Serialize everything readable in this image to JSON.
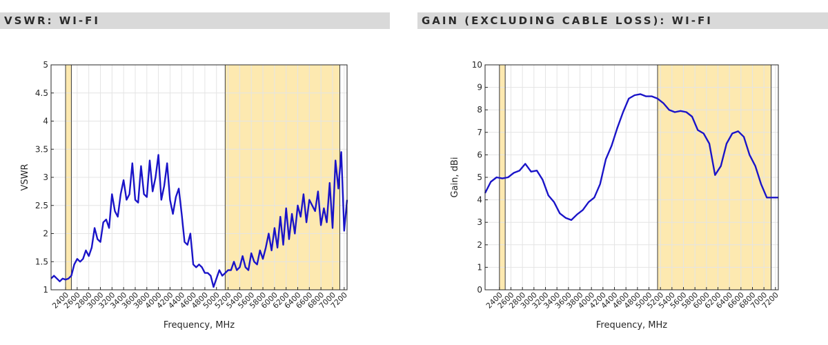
{
  "colors": {
    "header_bg": "#d9d9d9",
    "header_text": "#2b2b2b",
    "band_fill": "#fde9b0",
    "band_edge": "#3a3a3a",
    "line": "#1a14c8",
    "grid": "#e4e4e4",
    "axis": "#262626"
  },
  "panels": [
    {
      "title": "VSWR: WI-FI"
    },
    {
      "title": "GAIN (EXCLUDING CABLE LOSS): WI-FI"
    }
  ],
  "chart_data": [
    {
      "type": "line",
      "title": "",
      "xlabel": "Frequency, MHz",
      "ylabel": "VSWR",
      "xlim": [
        2150,
        7250
      ],
      "ylim": [
        1,
        5
      ],
      "x_ticks": [
        2400,
        2600,
        2800,
        3000,
        3200,
        3400,
        3600,
        3800,
        4000,
        4200,
        4400,
        4600,
        4800,
        5000,
        5200,
        5400,
        5600,
        5800,
        6000,
        6200,
        6400,
        6600,
        6800,
        7000,
        7200
      ],
      "y_ticks": [
        1,
        1.5,
        2,
        2.5,
        3,
        3.5,
        4,
        4.5,
        5
      ],
      "y_tick_labels": [
        "1",
        "1.5",
        "2",
        "2.5",
        "3",
        "3.5",
        "4",
        "4.5",
        "5"
      ],
      "grid": true,
      "bands": [
        [
          2400,
          2500
        ],
        [
          5150,
          7125
        ]
      ],
      "series": [
        {
          "x": [
            2150,
            2200,
            2250,
            2300,
            2350,
            2400,
            2450,
            2500,
            2550,
            2600,
            2650,
            2700,
            2750,
            2800,
            2850,
            2900,
            2950,
            3000,
            3050,
            3100,
            3150,
            3200,
            3250,
            3300,
            3350,
            3400,
            3450,
            3500,
            3550,
            3600,
            3650,
            3700,
            3750,
            3800,
            3850,
            3900,
            3950,
            4000,
            4050,
            4100,
            4150,
            4200,
            4250,
            4300,
            4350,
            4400,
            4450,
            4500,
            4550,
            4600,
            4650,
            4700,
            4750,
            4800,
            4850,
            4900,
            4950,
            5000,
            5050,
            5100,
            5150,
            5200,
            5250,
            5300,
            5350,
            5400,
            5450,
            5500,
            5550,
            5600,
            5650,
            5700,
            5750,
            5800,
            5850,
            5900,
            5950,
            6000,
            6050,
            6100,
            6150,
            6200,
            6250,
            6300,
            6350,
            6400,
            6450,
            6500,
            6550,
            6600,
            6650,
            6700,
            6750,
            6800,
            6850,
            6900,
            6950,
            7000,
            7050,
            7100,
            7150,
            7200,
            7250
          ],
          "y": [
            1.2,
            1.25,
            1.2,
            1.15,
            1.2,
            1.18,
            1.2,
            1.25,
            1.45,
            1.55,
            1.5,
            1.55,
            1.7,
            1.6,
            1.75,
            2.1,
            1.9,
            1.85,
            2.2,
            2.25,
            2.1,
            2.7,
            2.4,
            2.3,
            2.7,
            2.95,
            2.6,
            2.7,
            3.25,
            2.6,
            2.55,
            3.2,
            2.7,
            2.65,
            3.3,
            2.75,
            3.0,
            3.4,
            2.6,
            2.85,
            3.25,
            2.6,
            2.35,
            2.65,
            2.8,
            2.35,
            1.85,
            1.8,
            2.0,
            1.45,
            1.4,
            1.45,
            1.4,
            1.3,
            1.3,
            1.25,
            1.05,
            1.2,
            1.35,
            1.25,
            1.3,
            1.35,
            1.35,
            1.5,
            1.35,
            1.4,
            1.6,
            1.4,
            1.35,
            1.65,
            1.5,
            1.45,
            1.7,
            1.55,
            1.75,
            2.0,
            1.7,
            2.1,
            1.75,
            2.3,
            1.8,
            2.45,
            1.9,
            2.35,
            2.0,
            2.5,
            2.3,
            2.7,
            2.2,
            2.6,
            2.5,
            2.4,
            2.75,
            2.15,
            2.45,
            2.2,
            2.9,
            2.1,
            3.3,
            2.8,
            3.45,
            2.05,
            2.6
          ]
        }
      ]
    },
    {
      "type": "line",
      "title": "",
      "xlabel": "Frequency, MHz",
      "ylabel": "Gain, dBi",
      "xlim": [
        2150,
        7250
      ],
      "ylim": [
        0,
        10
      ],
      "x_ticks": [
        2400,
        2600,
        2800,
        3000,
        3200,
        3400,
        3600,
        3800,
        4000,
        4200,
        4400,
        4600,
        4800,
        5000,
        5200,
        5400,
        5600,
        5800,
        6000,
        6200,
        6400,
        6600,
        6800,
        7000,
        7200
      ],
      "y_ticks": [
        0,
        1,
        2,
        3,
        4,
        5,
        6,
        7,
        8,
        9,
        10
      ],
      "y_tick_labels": [
        "0",
        "1",
        "2",
        "3",
        "4",
        "5",
        "6",
        "7",
        "8",
        "9",
        "10"
      ],
      "grid": true,
      "bands": [
        [
          2400,
          2500
        ],
        [
          5150,
          7125
        ]
      ],
      "series": [
        {
          "x": [
            2150,
            2250,
            2350,
            2450,
            2550,
            2650,
            2750,
            2850,
            2950,
            3050,
            3150,
            3250,
            3350,
            3450,
            3550,
            3650,
            3750,
            3850,
            3950,
            4050,
            4150,
            4250,
            4350,
            4450,
            4550,
            4650,
            4750,
            4850,
            4950,
            5050,
            5150,
            5250,
            5350,
            5450,
            5550,
            5650,
            5750,
            5850,
            5950,
            6050,
            6150,
            6250,
            6350,
            6450,
            6550,
            6650,
            6750,
            6850,
            6950,
            7050,
            7150,
            7250
          ],
          "y": [
            4.3,
            4.8,
            5.0,
            4.95,
            5.0,
            5.2,
            5.3,
            5.6,
            5.25,
            5.3,
            4.9,
            4.2,
            3.9,
            3.4,
            3.2,
            3.1,
            3.35,
            3.55,
            3.9,
            4.1,
            4.7,
            5.8,
            6.4,
            7.2,
            7.9,
            8.5,
            8.65,
            8.7,
            8.6,
            8.6,
            8.5,
            8.3,
            8.0,
            7.9,
            7.95,
            7.9,
            7.7,
            7.1,
            6.95,
            6.5,
            5.1,
            5.5,
            6.5,
            6.95,
            7.05,
            6.8,
            6.0,
            5.5,
            4.7,
            4.1,
            4.1,
            4.1
          ]
        }
      ]
    }
  ]
}
